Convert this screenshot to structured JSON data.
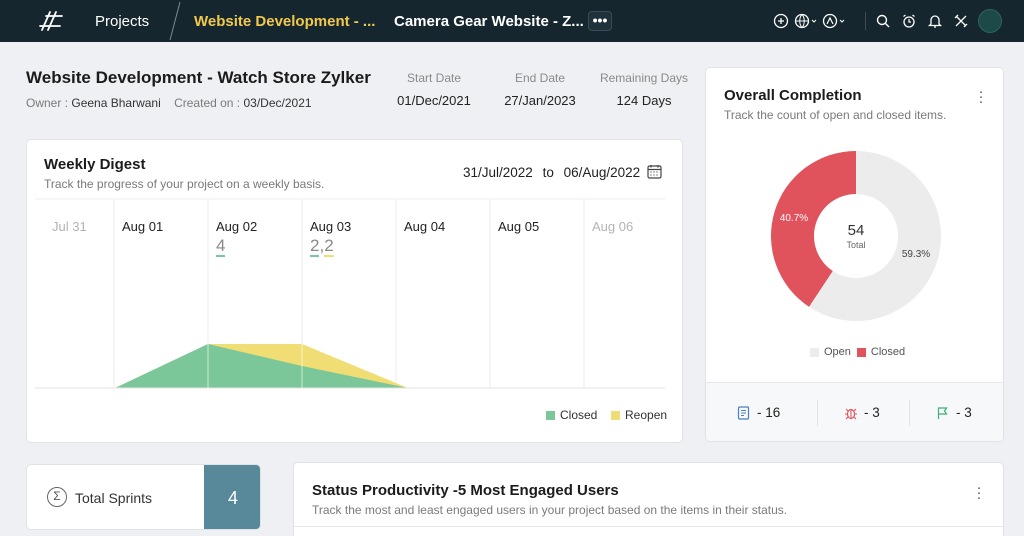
{
  "topbar": {
    "projects_label": "Projects",
    "active_tab": "Website Development - ...",
    "second_tab": "Camera Gear Website - Z...",
    "more_label": "•••"
  },
  "project": {
    "title": "Website Development - Watch Store Zylker",
    "owner_label": "Owner :",
    "owner_name": "Geena Bharwani",
    "created_label": "Created on :",
    "created_date": "03/Dec/2021",
    "start_label": "Start Date",
    "start_value": "01/Dec/2021",
    "end_label": "End Date",
    "end_value": "27/Jan/2023",
    "remaining_label": "Remaining Days",
    "remaining_value": "124 Days"
  },
  "weekly": {
    "title": "Weekly Digest",
    "subtitle": "Track the progress of your project on a weekly basis.",
    "range_start": "31/Jul/2022",
    "range_to": "to",
    "range_end": "06/Aug/2022",
    "days": [
      "Jul 31",
      "Aug 01",
      "Aug 02",
      "Aug 03",
      "Aug 04",
      "Aug 05",
      "Aug 06"
    ],
    "count_aug02": "4",
    "count_aug03_a": "2",
    "count_aug03_sep": ",",
    "count_aug03_b": "2",
    "legend_closed": "Closed",
    "legend_reopen": "Reopen",
    "colors": {
      "closed": "#7cc79a",
      "reopen": "#f0de74"
    }
  },
  "chart_data": {
    "type": "area",
    "categories": [
      "Jul 31",
      "Aug 01",
      "Aug 02",
      "Aug 03",
      "Aug 04",
      "Aug 05",
      "Aug 06"
    ],
    "series": [
      {
        "name": "Closed",
        "values": [
          0,
          0,
          4,
          2,
          0,
          0,
          0
        ]
      },
      {
        "name": "Reopen",
        "values": [
          0,
          0,
          0,
          2,
          0,
          0,
          0
        ]
      }
    ]
  },
  "overall": {
    "title": "Overall Completion",
    "subtitle": "Track the count of open and closed items.",
    "total": "54",
    "total_label": "Total",
    "closed_pct": "40.7%",
    "open_pct": "59.3%",
    "closed_fraction": 0.407,
    "legend_open": "Open",
    "legend_closed": "Closed",
    "colors": {
      "open": "#ececec",
      "closed": "#e0525c"
    },
    "tasks_count": "- 16",
    "bugs_count": "- 3",
    "milestones_count": "- 3"
  },
  "sprints": {
    "label": "Total Sprints",
    "value": "4",
    "sigma": "Σ"
  },
  "status": {
    "title": "Status Productivity -5 Most Engaged Users",
    "subtitle": "Track the most and least engaged users in your project based on the items in their status."
  }
}
